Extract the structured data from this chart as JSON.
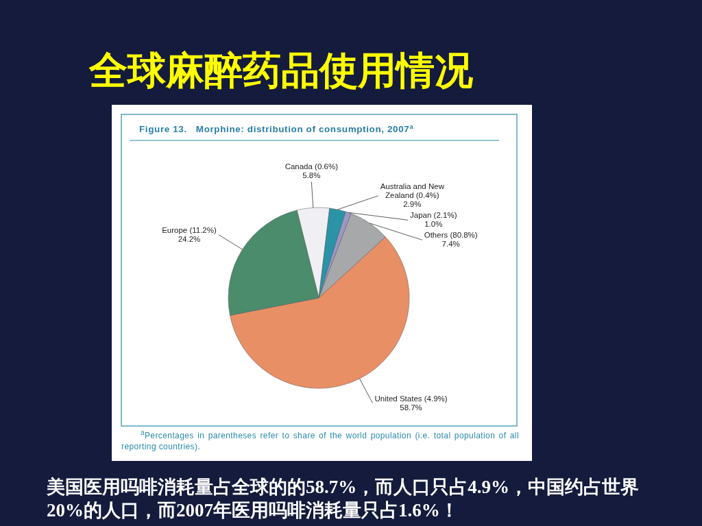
{
  "chart_data": {
    "type": "pie",
    "title": "全球麻醉药品使用情况",
    "subtitle": "Figure 13.   Morphine: distribution of consumption, 2007$^{a}$",
    "categories": [
      "Canada (0.6%)",
      "Australia and New Zealand (0.4%)",
      "Japan (2.1%)",
      "Others (80.8%)",
      "United States (4.9%)",
      "Europe (11.2%)"
    ],
    "values": [
      5.8,
      2.9,
      1.0,
      7.4,
      58.7,
      24.2
    ],
    "value_labels": [
      "5.8%",
      "2.9%",
      "1.0%",
      "7.4%",
      "58.7%",
      "24.2%"
    ],
    "colors": [
      "#f0eff3",
      "#2a93a6",
      "#9b98c8",
      "#a6a8aa",
      "#e88f66",
      "#4a8c6c"
    ],
    "annotations": [
      "$^{a}$Percentages in parentheses refer to share of the world population (i.e. total population of all reporting countries).",
      "美国医用吗啡消耗量占全球的的58.7%，而人口只占4.9%，中国约占世界20%的人口，而2007年医用吗啡消耗量只占1.6%！"
    ]
  }
}
